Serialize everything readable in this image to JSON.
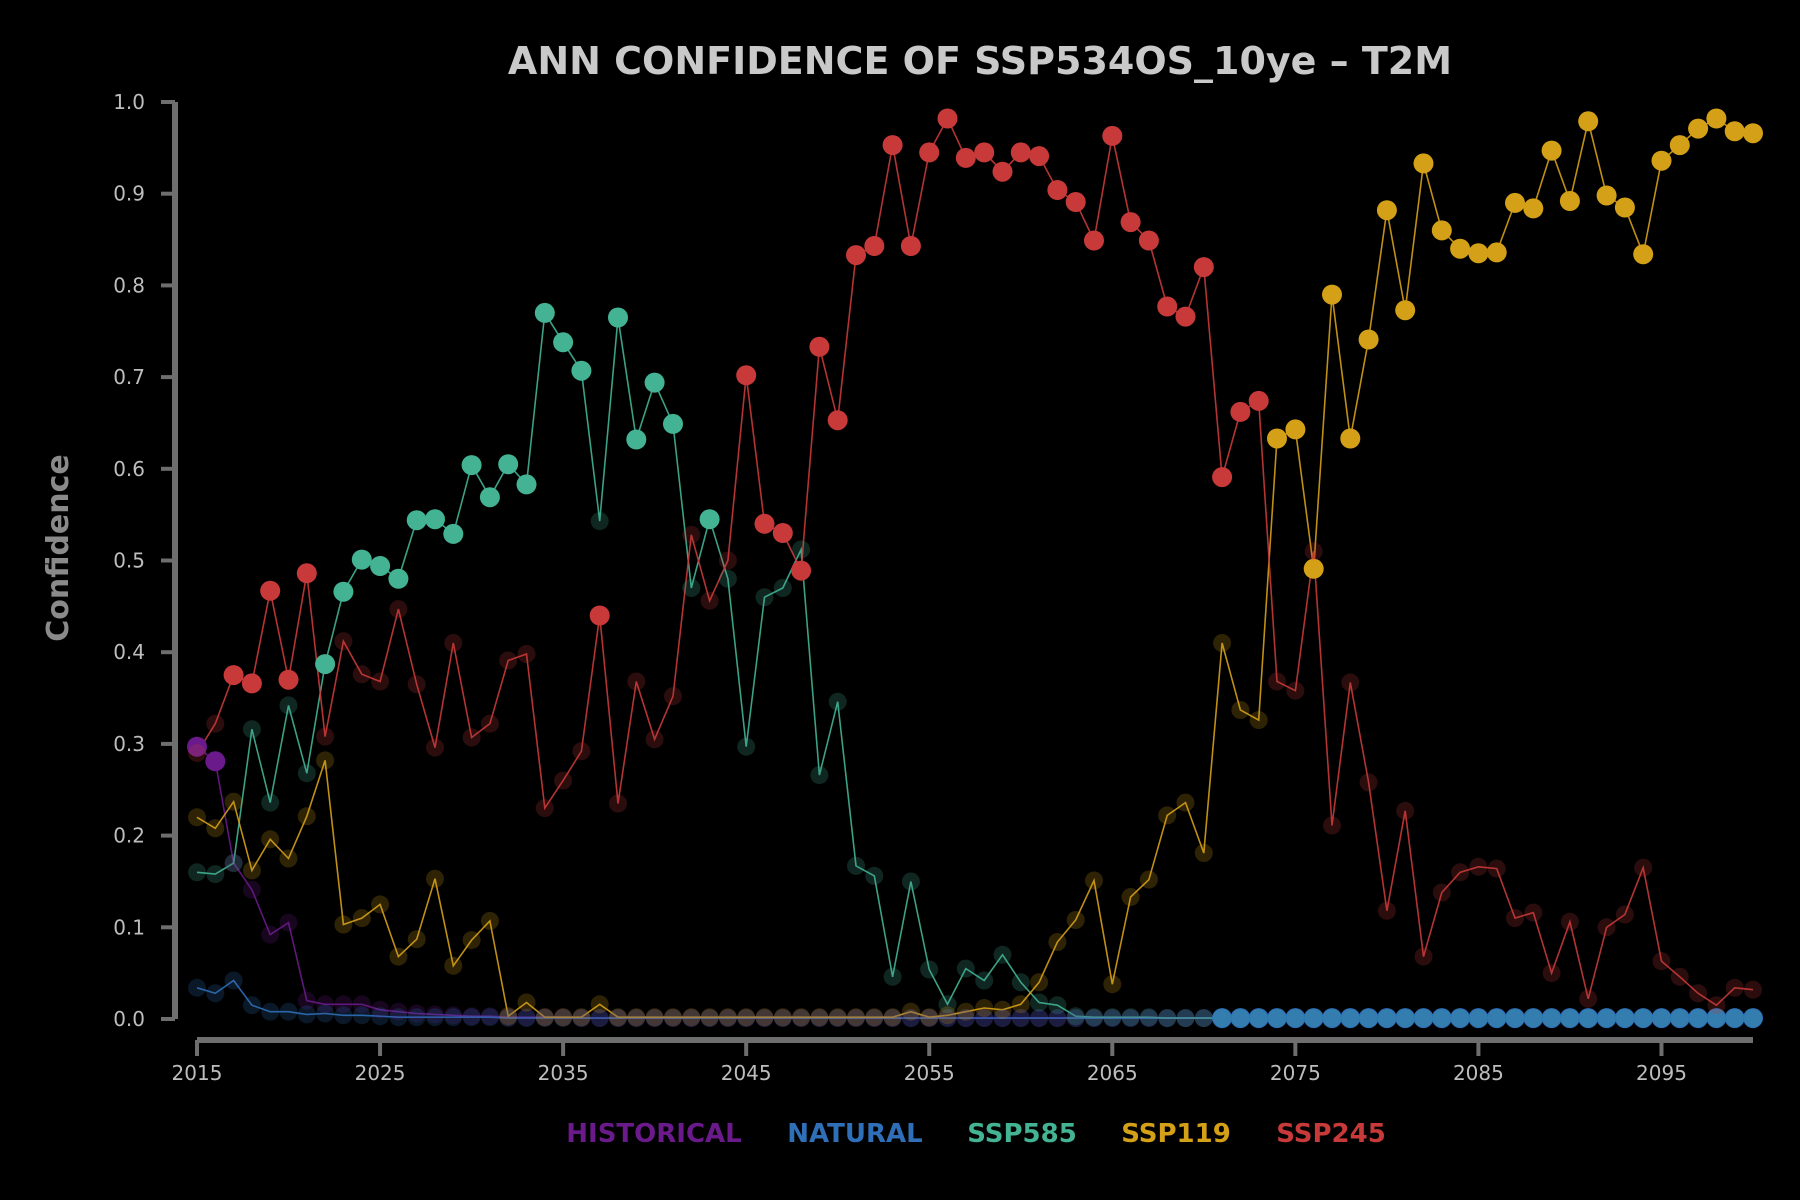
{
  "chart_data": {
    "type": "line",
    "title": "ANN CONFIDENCE OF SSP534OS_10ye – T2M",
    "xlabel": "",
    "ylabel": "Confidence",
    "xlim": [
      2015,
      2100
    ],
    "ylim": [
      0.0,
      1.0
    ],
    "x_ticks": [
      "2015",
      "2025",
      "2035",
      "2045",
      "2055",
      "2065",
      "2075",
      "2085",
      "2095"
    ],
    "y_ticks": [
      "0.0",
      "0.1",
      "0.2",
      "0.3",
      "0.4",
      "0.5",
      "0.6",
      "0.7",
      "0.8",
      "0.9",
      "1.0"
    ],
    "grid": false,
    "legend_position": "bottom-center",
    "x_start": 2015,
    "colors": {
      "historical": "#6a1a8a",
      "natural": "#2f6fb8",
      "ssp585": "#43b393",
      "ssp119": "#d4a017",
      "ssp245": "#c83a3a",
      "axis": "#6e6e6e"
    },
    "series": [
      {
        "name": "HISTORICAL",
        "key": "historical",
        "values": [
          0.297,
          0.281,
          0.17,
          0.141,
          0.092,
          0.105,
          0.02,
          0.016,
          0.016,
          0.016,
          0.01,
          0.008,
          0.006,
          0.005,
          0.004,
          0.003,
          0.003,
          0.002,
          0.002,
          0.002,
          0.002,
          0.001,
          0.001,
          0.001,
          0.001,
          0.001,
          0.001,
          0.001,
          0.001,
          0.001,
          0.001,
          0.001,
          0.001,
          0.001,
          0.001,
          0.001,
          0.001,
          0.001,
          0.001,
          0.001,
          0.001,
          0.001,
          0.001,
          0.001,
          0.001,
          0.001,
          0.001,
          0.001,
          0.001,
          0.001,
          0.001,
          0.001,
          0.001,
          0.001,
          0.001,
          0.001,
          0.001,
          0.001,
          0.001,
          0.001,
          0.001,
          0.001,
          0.001,
          0.001,
          0.001,
          0.001,
          0.001,
          0.001,
          0.001,
          0.001,
          0.001,
          0.001,
          0.001,
          0.001,
          0.001,
          0.001,
          0.001,
          0.001,
          0.001,
          0.001,
          0.001,
          0.001,
          0.001,
          0.001,
          0.001,
          0.001
        ]
      },
      {
        "name": "NATURAL",
        "key": "natural",
        "values": [
          0.034,
          0.028,
          0.042,
          0.015,
          0.008,
          0.008,
          0.005,
          0.006,
          0.004,
          0.004,
          0.003,
          0.002,
          0.002,
          0.002,
          0.002,
          0.002,
          0.002,
          0.001,
          0.001,
          0.001,
          0.001,
          0.001,
          0.001,
          0.001,
          0.001,
          0.001,
          0.001,
          0.001,
          0.001,
          0.001,
          0.001,
          0.001,
          0.001,
          0.001,
          0.001,
          0.001,
          0.001,
          0.001,
          0.001,
          0.001,
          0.001,
          0.001,
          0.001,
          0.001,
          0.001,
          0.001,
          0.001,
          0.001,
          0.001,
          0.001,
          0.001,
          0.001,
          0.001,
          0.001,
          0.001,
          0.001,
          0.001,
          0.001,
          0.001,
          0.001,
          0.001,
          0.001,
          0.001,
          0.001,
          0.001,
          0.001,
          0.001,
          0.001,
          0.001,
          0.001,
          0.001,
          0.001,
          0.001,
          0.001,
          0.001,
          0.001,
          0.001,
          0.001,
          0.001,
          0.001,
          0.001,
          0.001,
          0.001,
          0.001,
          0.001,
          0.001
        ]
      },
      {
        "name": "SSP585",
        "key": "ssp585",
        "values": [
          0.16,
          0.158,
          0.17,
          0.316,
          0.236,
          0.342,
          0.268,
          0.387,
          0.466,
          0.501,
          0.494,
          0.48,
          0.544,
          0.545,
          0.529,
          0.604,
          0.569,
          0.605,
          0.583,
          0.77,
          0.738,
          0.707,
          0.543,
          0.765,
          0.632,
          0.694,
          0.649,
          0.47,
          0.545,
          0.48,
          0.297,
          0.46,
          0.47,
          0.512,
          0.266,
          0.346,
          0.167,
          0.156,
          0.046,
          0.15,
          0.054,
          0.016,
          0.055,
          0.042,
          0.07,
          0.04,
          0.018,
          0.015,
          0.003,
          0.002,
          0.002,
          0.002,
          0.002,
          0.001,
          0.001,
          0.001,
          0.001,
          0.001,
          0.001,
          0.001,
          0.001,
          0.001,
          0.001,
          0.001,
          0.001,
          0.001,
          0.001,
          0.001,
          0.001,
          0.001,
          0.001,
          0.001,
          0.001,
          0.001,
          0.001,
          0.001,
          0.001,
          0.001,
          0.001,
          0.001,
          0.001,
          0.001,
          0.001,
          0.001,
          0.001,
          0.001
        ]
      },
      {
        "name": "SSP119",
        "key": "ssp119",
        "values": [
          0.22,
          0.208,
          0.237,
          0.162,
          0.196,
          0.175,
          0.221,
          0.282,
          0.103,
          0.11,
          0.125,
          0.068,
          0.087,
          0.153,
          0.058,
          0.086,
          0.107,
          0.003,
          0.018,
          0.002,
          0.002,
          0.002,
          0.016,
          0.002,
          0.002,
          0.002,
          0.002,
          0.002,
          0.002,
          0.002,
          0.002,
          0.002,
          0.002,
          0.002,
          0.002,
          0.002,
          0.002,
          0.002,
          0.002,
          0.008,
          0.002,
          0.004,
          0.008,
          0.012,
          0.01,
          0.016,
          0.04,
          0.084,
          0.108,
          0.151,
          0.038,
          0.133,
          0.152,
          0.222,
          0.236,
          0.181,
          0.41,
          0.337,
          0.326,
          0.633,
          0.643,
          0.491,
          0.79,
          0.633,
          0.741,
          0.882,
          0.773,
          0.933,
          0.86,
          0.84,
          0.835,
          0.836,
          0.89,
          0.884,
          0.947,
          0.892,
          0.979,
          0.898,
          0.885,
          0.834,
          0.936,
          0.953,
          0.971,
          0.982,
          0.968,
          0.966
        ]
      },
      {
        "name": "SSP245",
        "key": "ssp245",
        "values": [
          0.29,
          0.322,
          0.375,
          0.366,
          0.467,
          0.37,
          0.486,
          0.308,
          0.412,
          0.376,
          0.368,
          0.447,
          0.365,
          0.296,
          0.41,
          0.307,
          0.322,
          0.391,
          0.398,
          0.23,
          0.26,
          0.292,
          0.44,
          0.235,
          0.368,
          0.305,
          0.352,
          0.528,
          0.456,
          0.5,
          0.702,
          0.54,
          0.53,
          0.489,
          0.733,
          0.653,
          0.833,
          0.843,
          0.953,
          0.843,
          0.945,
          0.982,
          0.939,
          0.945,
          0.924,
          0.945,
          0.941,
          0.904,
          0.891,
          0.849,
          0.963,
          0.869,
          0.849,
          0.777,
          0.766,
          0.82,
          0.591,
          0.662,
          0.674,
          0.368,
          0.358,
          0.51,
          0.211,
          0.367,
          0.258,
          0.118,
          0.227,
          0.068,
          0.138,
          0.16,
          0.166,
          0.164,
          0.11,
          0.116,
          0.05,
          0.106,
          0.022,
          0.1,
          0.114,
          0.165,
          0.063,
          0.046,
          0.028,
          0.015,
          0.034,
          0.032
        ]
      }
    ],
    "markers": {
      "historical": {
        "big": [
          0,
          1
        ]
      },
      "natural": {
        "big_from": 56
      },
      "ssp585": {
        "big": [
          7,
          8,
          9,
          10,
          11,
          12,
          13,
          14,
          15,
          16,
          17,
          18,
          19,
          20,
          21,
          23,
          24,
          25,
          26,
          28
        ]
      },
      "ssp119": {
        "big": [
          59,
          60,
          61,
          62,
          63,
          64,
          65,
          66,
          67,
          68,
          69,
          70,
          71,
          72,
          73,
          74,
          75,
          76,
          77,
          78,
          79,
          80,
          81,
          82,
          83,
          84,
          85
        ]
      },
      "ssp245": {
        "big": [
          2,
          3,
          4,
          5,
          6,
          22,
          30,
          31,
          32,
          33,
          34,
          35,
          36,
          37,
          38,
          39,
          40,
          41,
          42,
          43,
          44,
          45,
          46,
          47,
          48,
          49,
          50,
          51,
          52,
          53,
          54,
          55,
          56,
          57,
          58
        ]
      }
    }
  }
}
